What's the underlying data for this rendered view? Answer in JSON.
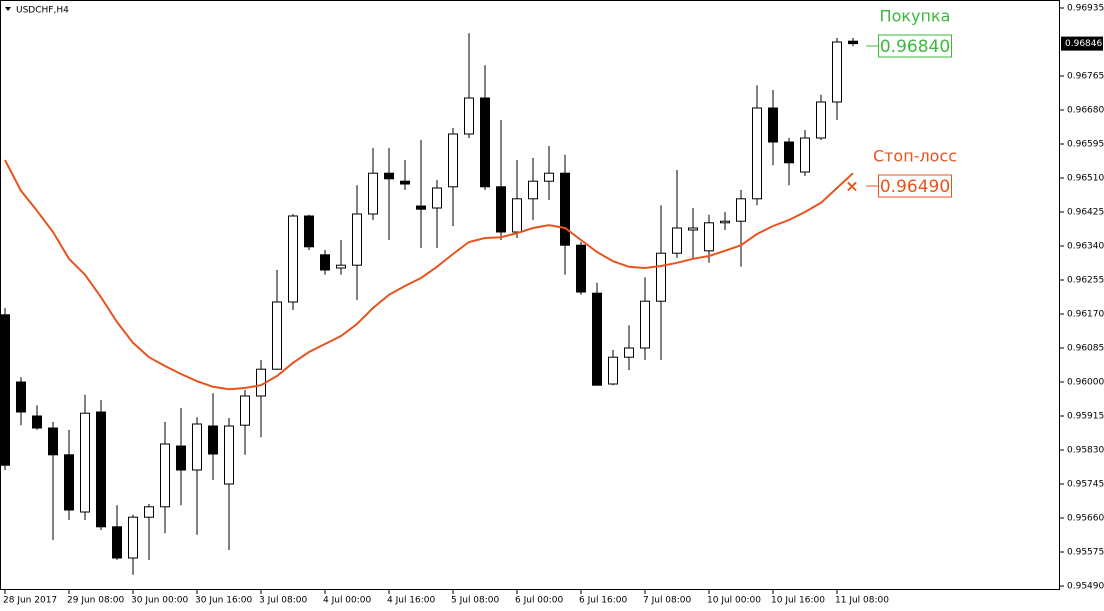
{
  "chart_data": {
    "type": "candlestick",
    "symbol": "USDCHF,H4",
    "categories": [
      "28 Jun 2017",
      null,
      null,
      null,
      "29 Jun 08:00",
      null,
      null,
      null,
      "30 Jun 00:00",
      null,
      null,
      null,
      "30 Jun 16:00",
      null,
      null,
      null,
      "3 Jul 08:00",
      null,
      null,
      null,
      "4 Jul 00:00",
      null,
      null,
      null,
      "4 Jul 16:00",
      null,
      null,
      null,
      "5 Jul 08:00",
      null,
      null,
      null,
      "6 Jul 00:00",
      null,
      null,
      null,
      "6 Jul 16:00",
      null,
      null,
      null,
      "7 Jul 08:00",
      null,
      null,
      null,
      "10 Jul 00:00",
      null,
      null,
      null,
      "10 Jul 16:00",
      null,
      null,
      null,
      "11 Jul 08:00",
      null
    ],
    "open": [
      0.96168,
      0.96,
      0.95915,
      0.95885,
      0.95818,
      0.95675,
      0.95925,
      0.95638,
      0.9556,
      0.95662,
      0.95688,
      0.9584,
      0.9578,
      0.9589,
      0.95745,
      0.95892,
      0.95965,
      0.96032,
      0.962,
      0.96415,
      0.96318,
      0.96285,
      0.96292,
      0.9642,
      0.96522,
      0.96502,
      0.9644,
      0.96435,
      0.96488,
      0.9662,
      0.9671,
      0.96488,
      0.96375,
      0.96458,
      0.96502,
      0.96522,
      0.96342,
      0.96222,
      0.95995,
      0.96062,
      0.96085,
      0.96202,
      0.96322,
      0.9638,
      0.96328,
      0.96398,
      0.96402,
      0.96458,
      0.96685,
      0.966,
      0.96525,
      0.9661,
      0.967,
      0.96852
    ],
    "high": [
      0.96185,
      0.96012,
      0.95942,
      0.959,
      0.9588,
      0.95968,
      0.95955,
      0.95692,
      0.95668,
      0.95695,
      0.959,
      0.95935,
      0.95912,
      0.95972,
      0.9591,
      0.9598,
      0.96055,
      0.9628,
      0.9642,
      0.96418,
      0.9633,
      0.96355,
      0.96492,
      0.96585,
      0.96585,
      0.96555,
      0.96605,
      0.96505,
      0.96635,
      0.96872,
      0.96792,
      0.96655,
      0.96555,
      0.9656,
      0.9659,
      0.96568,
      0.9635,
      0.96248,
      0.9608,
      0.96142,
      0.96262,
      0.96442,
      0.9653,
      0.96435,
      0.96418,
      0.96425,
      0.9648,
      0.96742,
      0.9673,
      0.9661,
      0.9663,
      0.96718,
      0.9686,
      0.9686
    ],
    "low": [
      0.9578,
      0.95892,
      0.9588,
      0.95605,
      0.95655,
      0.95655,
      0.9563,
      0.95555,
      0.95518,
      0.95555,
      0.95622,
      0.95692,
      0.95618,
      0.95755,
      0.9558,
      0.95818,
      0.95862,
      0.9603,
      0.9618,
      0.9633,
      0.96268,
      0.96268,
      0.96205,
      0.96405,
      0.96355,
      0.9648,
      0.96335,
      0.96335,
      0.9639,
      0.9661,
      0.9648,
      0.96355,
      0.9636,
      0.96405,
      0.96455,
      0.96268,
      0.96218,
      0.95992,
      0.95992,
      0.9603,
      0.96055,
      0.96055,
      0.9631,
      0.9631,
      0.96298,
      0.9638,
      0.96288,
      0.96442,
      0.96542,
      0.96492,
      0.96515,
      0.96605,
      0.96655,
      0.9684
    ],
    "close": [
      0.95792,
      0.95925,
      0.95885,
      0.95818,
      0.9568,
      0.95922,
      0.95638,
      0.9556,
      0.95662,
      0.95688,
      0.95845,
      0.9578,
      0.95895,
      0.9582,
      0.9589,
      0.95965,
      0.96032,
      0.962,
      0.96415,
      0.96338,
      0.9628,
      0.96292,
      0.9642,
      0.96522,
      0.96508,
      0.96495,
      0.96432,
      0.96485,
      0.9662,
      0.9671,
      0.96488,
      0.96375,
      0.96458,
      0.96502,
      0.96522,
      0.96342,
      0.96225,
      0.95992,
      0.96062,
      0.96085,
      0.96202,
      0.96322,
      0.96385,
      0.96385,
      0.96398,
      0.96402,
      0.96458,
      0.96685,
      0.966,
      0.96548,
      0.9661,
      0.967,
      0.9685,
      0.96846
    ],
    "bull_color": "#ffffff",
    "bear_color": "#000000",
    "moving_average": {
      "color": "#e8531e",
      "values": [
        0.96555,
        0.96478,
        0.96428,
        0.96375,
        0.96308,
        0.96268,
        0.96212,
        0.9615,
        0.96098,
        0.96062,
        0.9604,
        0.9602,
        0.96002,
        0.95988,
        0.95982,
        0.95985,
        0.95992,
        0.96015,
        0.96048,
        0.96075,
        0.96095,
        0.96115,
        0.96145,
        0.96185,
        0.96218,
        0.9624,
        0.9626,
        0.96288,
        0.9632,
        0.9635,
        0.9636,
        0.96362,
        0.96372,
        0.96385,
        0.96392,
        0.96385,
        0.96355,
        0.96325,
        0.96302,
        0.96288,
        0.96285,
        0.9629,
        0.96298,
        0.96308,
        0.96315,
        0.96328,
        0.96342,
        0.9637,
        0.9639,
        0.96405,
        0.96425,
        0.96448,
        0.96485,
        0.96522
      ]
    },
    "ylim": [
      0.9548,
      0.96955
    ],
    "yticks": [
      {
        "value": 0.96935,
        "label": "0.96935"
      },
      {
        "value": 0.96765,
        "label": "0.96765"
      },
      {
        "value": 0.9668,
        "label": "0.96680"
      },
      {
        "value": 0.96595,
        "label": "0.96595"
      },
      {
        "value": 0.9651,
        "label": "0.96510"
      },
      {
        "value": 0.96425,
        "label": "0.96425"
      },
      {
        "value": 0.9634,
        "label": "0.96340"
      },
      {
        "value": 0.96255,
        "label": "0.96255"
      },
      {
        "value": 0.9617,
        "label": "0.96170"
      },
      {
        "value": 0.96085,
        "label": "0.96085"
      },
      {
        "value": 0.96,
        "label": "0.96000"
      },
      {
        "value": 0.95915,
        "label": "0.95915"
      },
      {
        "value": 0.9583,
        "label": "0.95830"
      },
      {
        "value": 0.95745,
        "label": "0.95745"
      },
      {
        "value": 0.9566,
        "label": "0.95660"
      },
      {
        "value": 0.95575,
        "label": "0.95575"
      },
      {
        "value": 0.9549,
        "label": "0.95490"
      }
    ],
    "last_price": {
      "value": 0.96846,
      "label": "0.96846"
    },
    "annotations": [
      {
        "text": "Покупка",
        "value": 0.9684,
        "label": "0.96840",
        "color": "#3cb83c"
      },
      {
        "text": "Стоп-лосс",
        "value": 0.9649,
        "label": "0.96490",
        "color": "#e8531e",
        "marker": "×"
      }
    ]
  }
}
